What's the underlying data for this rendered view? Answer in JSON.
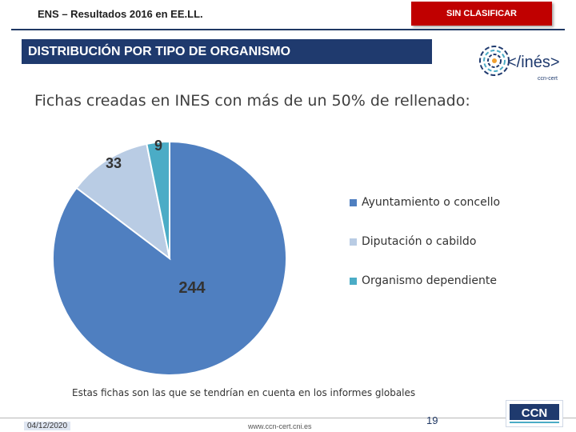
{
  "header": {
    "title": "ENS – Resultados 2016 en EE.LL.",
    "classification": "SIN CLASIFICAR"
  },
  "section": {
    "title": "DISTRIBUCIÓN POR TIPO DE ORGANISMO"
  },
  "logo_ines": {
    "text": "</inés>",
    "subtext": "ccn-cert"
  },
  "subtitle": "Fichas creadas en INES con más de un 50% de rellenado:",
  "chart_data": {
    "type": "pie",
    "title": "",
    "categories": [
      "Ayuntamiento o concello",
      "Diputación o cabildo",
      "Organismo dependiente"
    ],
    "values": [
      244,
      33,
      9
    ],
    "labels": [
      "244",
      "33",
      "9"
    ],
    "colors": [
      "#4f7fc0",
      "#b9cce4",
      "#4bacc6"
    ],
    "legend_position": "right"
  },
  "footnote": "Estas fichas son las que se tendrían en cuenta en los informes globales",
  "footer": {
    "date": "04/12/2020",
    "url": "www.ccn-cert.cni.es",
    "page": "19"
  },
  "logo_ccn": {
    "text": "CCN"
  },
  "colors": {
    "section_bar": "#1f3a6e",
    "classification_bg": "#c00000"
  }
}
